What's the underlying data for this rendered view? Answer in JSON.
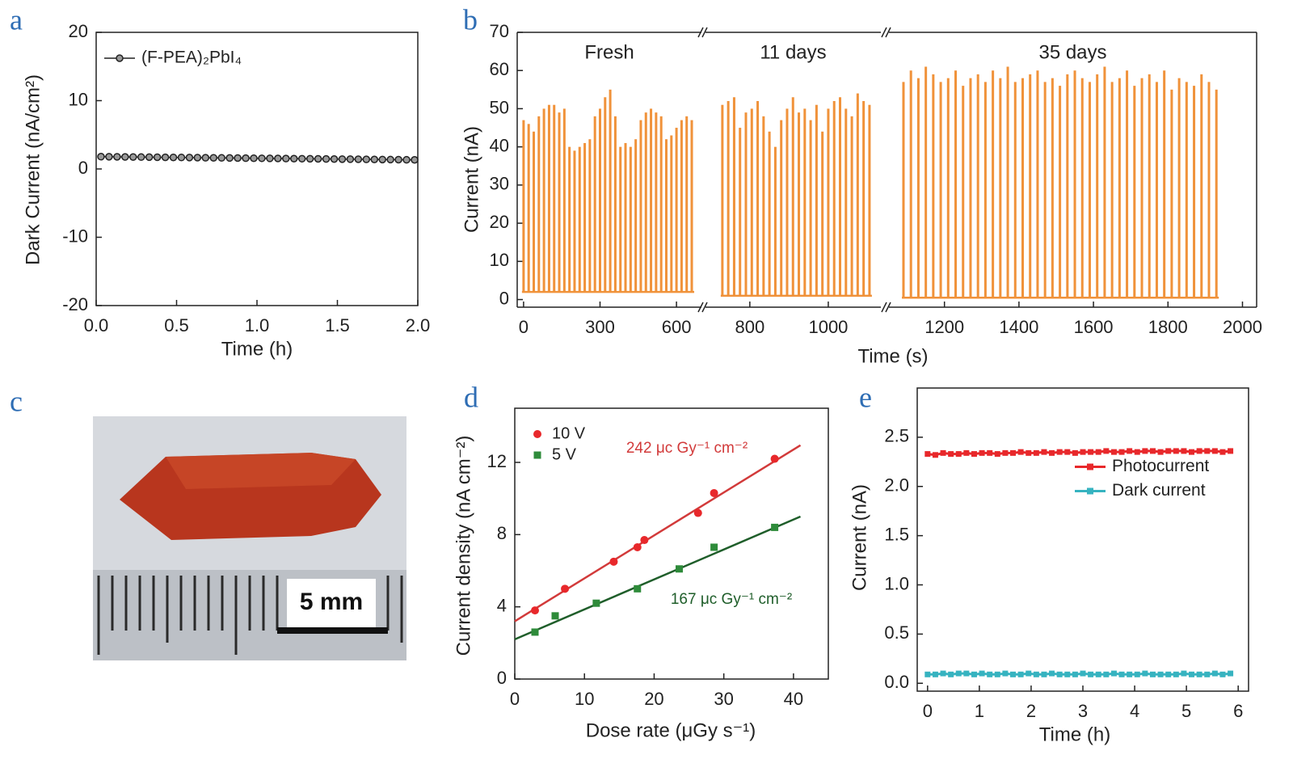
{
  "photo": {
    "panel": "c",
    "scale_label": "5 mm"
  },
  "chart_data": [
    {
      "type": "line",
      "panel": "a",
      "xlabel": "Time (h)",
      "ylabel": "Dark Current (nA/cm²)",
      "xlim": [
        0,
        2
      ],
      "ylim": [
        -20,
        20
      ],
      "xticks": [
        {
          "value": 0,
          "label": "0.0"
        },
        0.5,
        {
          "value": 1,
          "label": "1.0"
        },
        1.5,
        {
          "value": 2,
          "label": "2.0"
        }
      ],
      "yticks": [
        -20,
        -10,
        0,
        10,
        20
      ],
      "legend": "upper left",
      "x": [
        0.03,
        0.08,
        0.13,
        0.18,
        0.23,
        0.28,
        0.33,
        0.38,
        0.43,
        0.48,
        0.53,
        0.58,
        0.63,
        0.68,
        0.73,
        0.78,
        0.83,
        0.88,
        0.93,
        0.98,
        1.03,
        1.08,
        1.13,
        1.18,
        1.23,
        1.28,
        1.33,
        1.38,
        1.43,
        1.48,
        1.53,
        1.58,
        1.63,
        1.68,
        1.73,
        1.78,
        1.83,
        1.88,
        1.93,
        1.98
      ],
      "series": [
        {
          "name": "(F-PEA)₂PbI₄",
          "color": "#222222",
          "values": [
            1.8,
            1.79,
            1.78,
            1.76,
            1.75,
            1.74,
            1.73,
            1.72,
            1.7,
            1.69,
            1.68,
            1.67,
            1.66,
            1.64,
            1.63,
            1.62,
            1.61,
            1.6,
            1.58,
            1.57,
            1.56,
            1.55,
            1.54,
            1.52,
            1.51,
            1.5,
            1.49,
            1.48,
            1.46,
            1.45,
            1.44,
            1.43,
            1.42,
            1.4,
            1.39,
            1.38,
            1.37,
            1.36,
            1.34,
            1.33
          ]
        }
      ]
    },
    {
      "type": "pulses",
      "panel": "b",
      "xlabel": "Time (s)",
      "ylabel": "Current (nA)",
      "color": "#f0923a",
      "ylim": [
        -2,
        70
      ],
      "yticks": [
        0,
        10,
        20,
        30,
        40,
        50,
        60,
        70
      ],
      "segments": [
        {
          "label": "Fresh",
          "xlim": [
            -25,
            698
          ],
          "xticks": [
            0,
            300,
            600
          ],
          "baseline": 2,
          "x": [
            0,
            20,
            40,
            60,
            80,
            100,
            120,
            140,
            160,
            180,
            200,
            220,
            240,
            260,
            280,
            300,
            320,
            340,
            360,
            380,
            400,
            420,
            440,
            460,
            480,
            500,
            520,
            540,
            560,
            580,
            600,
            620,
            640,
            660
          ],
          "values": [
            47,
            46,
            44,
            48,
            50,
            51,
            51,
            49,
            50,
            40,
            39,
            40,
            41,
            42,
            48,
            50,
            53,
            55,
            48,
            40,
            41,
            40,
            42,
            47,
            49,
            50,
            49,
            48,
            42,
            43,
            45,
            47,
            48,
            47
          ]
        },
        {
          "label": "11 days",
          "xlim": [
            687,
            1134
          ],
          "xticks": [
            800,
            1000
          ],
          "baseline": 1,
          "x": [
            730,
            745,
            760,
            775,
            790,
            805,
            820,
            835,
            850,
            865,
            880,
            895,
            910,
            925,
            940,
            955,
            970,
            985,
            1000,
            1015,
            1030,
            1045,
            1060,
            1075,
            1090,
            1105
          ],
          "values": [
            51,
            52,
            53,
            45,
            49,
            50,
            52,
            48,
            44,
            40,
            47,
            50,
            53,
            49,
            50,
            47,
            51,
            44,
            50,
            52,
            53,
            50,
            48,
            54,
            52,
            51
          ]
        },
        {
          "label": "35 days",
          "xlim": [
            1051,
            2038
          ],
          "xticks": [
            1200,
            1400,
            1600,
            1800,
            2000
          ],
          "baseline": 0.5,
          "x": [
            1090,
            1110,
            1130,
            1150,
            1170,
            1190,
            1210,
            1230,
            1250,
            1270,
            1290,
            1310,
            1330,
            1350,
            1370,
            1390,
            1410,
            1430,
            1450,
            1470,
            1490,
            1510,
            1530,
            1550,
            1570,
            1590,
            1610,
            1630,
            1650,
            1670,
            1690,
            1710,
            1730,
            1750,
            1770,
            1790,
            1810,
            1830,
            1850,
            1870,
            1890,
            1910,
            1930
          ],
          "values": [
            57,
            60,
            58,
            61,
            59,
            57,
            58,
            60,
            56,
            58,
            59,
            57,
            60,
            58,
            61,
            57,
            58,
            59,
            60,
            57,
            58,
            56,
            59,
            60,
            58,
            57,
            59,
            61,
            57,
            58,
            60,
            56,
            58,
            59,
            57,
            60,
            55,
            58,
            57,
            56,
            59,
            57,
            55
          ]
        }
      ]
    },
    {
      "type": "scatter",
      "panel": "d",
      "xlabel": "Dose rate (μGy s⁻¹)",
      "ylabel": "Current density (nA cm⁻²)",
      "xlim": [
        0,
        45
      ],
      "ylim": [
        0,
        15
      ],
      "xticks": [
        0,
        10,
        20,
        30,
        40
      ],
      "yticks": [
        0,
        4,
        8,
        12
      ],
      "legend": "upper left",
      "series": [
        {
          "name": "10 V",
          "color": "#e8282b",
          "line_color": "#d23a3a",
          "marker": "circle",
          "x": [
            2.9,
            7.2,
            14.2,
            17.6,
            18.6,
            26.3,
            28.6,
            37.3
          ],
          "values": [
            3.8,
            5.0,
            6.5,
            7.3,
            7.7,
            9.2,
            10.3,
            12.2
          ],
          "fit_x": [
            0,
            41
          ],
          "fit_values": [
            3.2,
            12.95
          ],
          "annotation": "242 μc Gy⁻¹ cm⁻²"
        },
        {
          "name": "5 V",
          "color": "#2e8b3a",
          "line_color": "#1f5e2a",
          "marker": "square",
          "x": [
            2.9,
            5.8,
            11.7,
            17.6,
            23.6,
            28.6,
            37.3
          ],
          "values": [
            2.6,
            3.5,
            4.2,
            5.0,
            6.1,
            7.3,
            8.4
          ],
          "fit_x": [
            0,
            41
          ],
          "fit_values": [
            2.2,
            9.0
          ],
          "annotation": "167 μc Gy⁻¹ cm⁻²"
        }
      ]
    },
    {
      "type": "line",
      "panel": "e",
      "xlabel": "Time (h)",
      "ylabel": "Current (nA)",
      "xlim": [
        -0.2,
        6.2
      ],
      "ylim": [
        -0.08,
        3.0
      ],
      "xticks": [
        0,
        1,
        2,
        3,
        4,
        5,
        6
      ],
      "yticks": [
        {
          "value": 0,
          "label": "0.0"
        },
        0.5,
        {
          "value": 1,
          "label": "1.0"
        },
        1.5,
        {
          "value": 2,
          "label": "2.0"
        },
        2.5
      ],
      "legend": "center right",
      "marker": "square",
      "x": [
        0,
        0.15,
        0.3,
        0.45,
        0.6,
        0.75,
        0.9,
        1.05,
        1.2,
        1.35,
        1.5,
        1.65,
        1.8,
        1.95,
        2.1,
        2.25,
        2.4,
        2.55,
        2.7,
        2.85,
        3,
        3.15,
        3.3,
        3.45,
        3.6,
        3.75,
        3.9,
        4.05,
        4.2,
        4.35,
        4.5,
        4.65,
        4.8,
        4.95,
        5.1,
        5.25,
        5.4,
        5.55,
        5.7,
        5.85
      ],
      "series": [
        {
          "name": "Photocurrent",
          "color": "#e8282b",
          "values": [
            2.33,
            2.32,
            2.34,
            2.33,
            2.33,
            2.34,
            2.33,
            2.34,
            2.34,
            2.33,
            2.34,
            2.34,
            2.35,
            2.34,
            2.34,
            2.35,
            2.34,
            2.35,
            2.35,
            2.34,
            2.35,
            2.35,
            2.35,
            2.36,
            2.35,
            2.35,
            2.36,
            2.35,
            2.36,
            2.36,
            2.35,
            2.36,
            2.36,
            2.36,
            2.35,
            2.36,
            2.36,
            2.36,
            2.35,
            2.36
          ]
        },
        {
          "name": "Dark current",
          "color": "#36b3c0",
          "values": [
            0.09,
            0.09,
            0.1,
            0.09,
            0.1,
            0.1,
            0.09,
            0.1,
            0.09,
            0.09,
            0.1,
            0.09,
            0.09,
            0.1,
            0.09,
            0.09,
            0.1,
            0.09,
            0.09,
            0.09,
            0.1,
            0.09,
            0.09,
            0.09,
            0.1,
            0.09,
            0.09,
            0.09,
            0.1,
            0.09,
            0.09,
            0.09,
            0.09,
            0.1,
            0.09,
            0.09,
            0.09,
            0.1,
            0.09,
            0.1
          ]
        }
      ]
    }
  ]
}
